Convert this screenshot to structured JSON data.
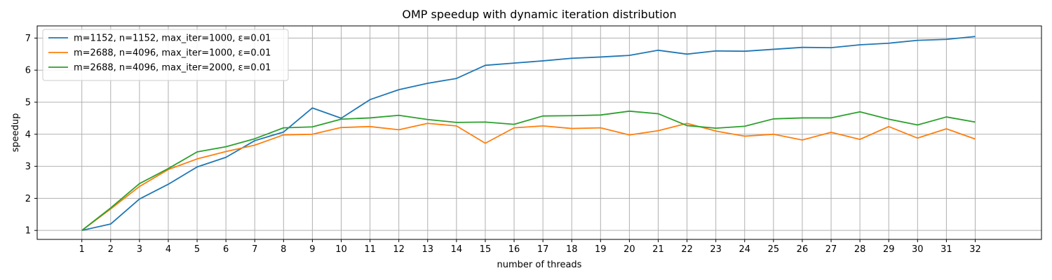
{
  "chart_data": {
    "type": "line",
    "title": "OMP speedup with dynamic iteration distribution",
    "xlabel": "number of threads",
    "ylabel": "speedup",
    "x": [
      1,
      2,
      3,
      4,
      5,
      6,
      7,
      8,
      9,
      10,
      11,
      12,
      13,
      14,
      15,
      16,
      17,
      18,
      19,
      20,
      21,
      22,
      23,
      24,
      25,
      26,
      27,
      28,
      29,
      30,
      31,
      32
    ],
    "xlim": [
      -0.55,
      34.3
    ],
    "ylim": [
      0.72,
      7.38
    ],
    "yticks": [
      1,
      2,
      3,
      4,
      5,
      6,
      7
    ],
    "grid": true,
    "legend_position": "top-left",
    "series": [
      {
        "name": "m=1152, n=1152, max_iter=1000, ε=0.01",
        "color": "#1f77b4",
        "values": [
          1.0,
          1.2,
          1.98,
          2.44,
          2.98,
          3.28,
          3.8,
          4.07,
          4.82,
          4.5,
          5.08,
          5.39,
          5.59,
          5.74,
          6.15,
          6.22,
          6.29,
          6.37,
          6.41,
          6.46,
          6.62,
          6.5,
          6.6,
          6.59,
          6.65,
          6.71,
          6.7,
          6.79,
          6.84,
          6.93,
          6.96,
          7.05
        ]
      },
      {
        "name": "m=2688, n=4096, max_iter=1000, ε=0.01",
        "color": "#ff7f0e",
        "values": [
          1.0,
          1.67,
          2.37,
          2.9,
          3.23,
          3.46,
          3.66,
          3.98,
          4.0,
          4.21,
          4.24,
          4.14,
          4.34,
          4.26,
          3.72,
          4.2,
          4.26,
          4.18,
          4.2,
          3.98,
          4.11,
          4.34,
          4.1,
          3.94,
          4.0,
          3.82,
          4.06,
          3.84,
          4.24,
          3.88,
          4.17,
          3.85
        ]
      },
      {
        "name": "m=2688, n=4096, max_iter=2000, ε=0.01",
        "color": "#2ca02c",
        "values": [
          1.0,
          1.7,
          2.46,
          2.93,
          3.45,
          3.61,
          3.86,
          4.2,
          4.23,
          4.47,
          4.51,
          4.59,
          4.46,
          4.37,
          4.38,
          4.31,
          4.57,
          4.58,
          4.6,
          4.72,
          4.64,
          4.27,
          4.19,
          4.25,
          4.48,
          4.51,
          4.51,
          4.7,
          4.47,
          4.29,
          4.54,
          4.38
        ]
      }
    ]
  }
}
